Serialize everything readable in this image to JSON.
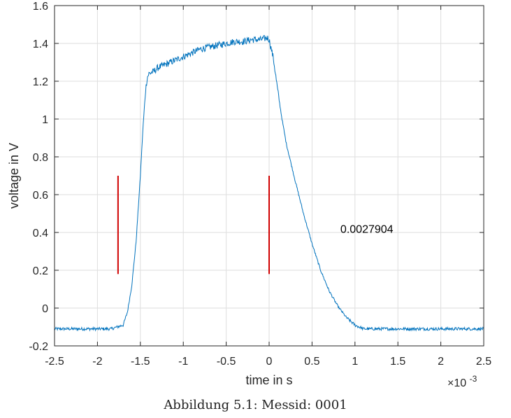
{
  "chart_data": {
    "type": "line",
    "xlabel": "time in s",
    "ylabel": "voltage in V",
    "x_exponent_label": "×10",
    "x_exponent_power": "-3",
    "xlim": [
      -2.5,
      2.5
    ],
    "ylim": [
      -0.2,
      1.6
    ],
    "x_ticks": [
      -2.5,
      -2,
      -1.5,
      -1,
      -0.5,
      0,
      0.5,
      1,
      1.5,
      2,
      2.5
    ],
    "x_tick_labels": [
      "-2.5",
      "-2",
      "-1.5",
      "-1",
      "-0.5",
      "0",
      "0.5",
      "1",
      "1.5",
      "2",
      "2.5"
    ],
    "y_ticks": [
      -0.2,
      0,
      0.2,
      0.4,
      0.6,
      0.8,
      1.0,
      1.2,
      1.4,
      1.6
    ],
    "y_tick_labels": [
      "-0.2",
      "0",
      "0.2",
      "0.4",
      "0.6",
      "0.8",
      "1",
      "1.2",
      "1.4",
      "1.6"
    ],
    "grid": true,
    "series": [
      {
        "color": "#0072BD",
        "x": [
          -2.5,
          -2.0,
          -1.84,
          -1.7,
          -1.65,
          -1.6,
          -1.55,
          -1.5,
          -1.47,
          -1.44,
          -1.42,
          -1.4,
          -1.35,
          -1.3,
          -1.2,
          -1.1,
          -1.0,
          -0.9,
          -0.8,
          -0.7,
          -0.6,
          -0.5,
          -0.4,
          -0.3,
          -0.2,
          -0.1,
          -0.02,
          0.0,
          0.05,
          0.1,
          0.15,
          0.2,
          0.3,
          0.4,
          0.5,
          0.6,
          0.7,
          0.8,
          0.9,
          1.0,
          1.05,
          1.1,
          1.2,
          1.5,
          2.0,
          2.5
        ],
        "y": [
          -0.11,
          -0.11,
          -0.11,
          -0.09,
          -0.02,
          0.12,
          0.35,
          0.7,
          0.95,
          1.15,
          1.22,
          1.24,
          1.25,
          1.27,
          1.29,
          1.31,
          1.33,
          1.35,
          1.37,
          1.38,
          1.39,
          1.4,
          1.41,
          1.41,
          1.42,
          1.42,
          1.43,
          1.42,
          1.32,
          1.15,
          1.0,
          0.87,
          0.68,
          0.5,
          0.34,
          0.2,
          0.09,
          0.01,
          -0.05,
          -0.09,
          -0.1,
          -0.11,
          -0.11,
          -0.11,
          -0.11,
          -0.11
        ]
      }
    ],
    "markers": [
      {
        "color": "#D00000",
        "x": -0.00176,
        "y_bottom": 0.18,
        "y_top": 0.7
      },
      {
        "color": "#D00000",
        "x": 0.0,
        "y_bottom": 0.18,
        "y_top": 0.7
      }
    ],
    "annotation": {
      "text": "0.0027904",
      "x": 0.00083,
      "y": 0.42
    }
  },
  "caption": "Abbildung 5.1: Messid: 0001"
}
